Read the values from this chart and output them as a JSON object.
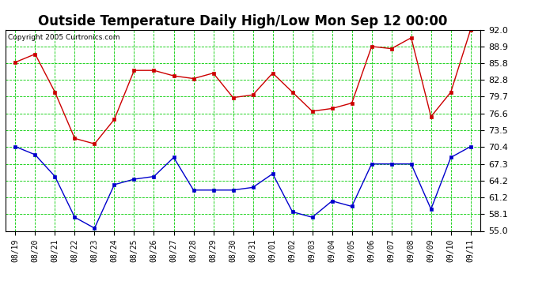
{
  "title": "Outside Temperature Daily High/Low Mon Sep 12 00:00",
  "copyright": "Copyright 2005 Curtronics.com",
  "x_labels": [
    "08/19",
    "08/20",
    "08/21",
    "08/22",
    "08/23",
    "08/24",
    "08/25",
    "08/26",
    "08/27",
    "08/28",
    "08/29",
    "08/30",
    "08/31",
    "09/01",
    "09/02",
    "09/03",
    "09/04",
    "09/05",
    "09/06",
    "09/07",
    "09/08",
    "09/09",
    "09/10",
    "09/11"
  ],
  "high_values": [
    86.0,
    87.5,
    80.5,
    72.0,
    71.0,
    75.5,
    84.5,
    84.5,
    83.5,
    83.0,
    84.0,
    79.5,
    80.0,
    84.0,
    80.5,
    77.0,
    77.5,
    78.5,
    88.9,
    88.5,
    90.5,
    76.0,
    80.5,
    92.0
  ],
  "low_values": [
    70.5,
    69.0,
    65.0,
    57.5,
    55.5,
    63.5,
    64.5,
    65.0,
    68.5,
    62.5,
    62.5,
    62.5,
    63.0,
    65.5,
    58.5,
    57.5,
    60.5,
    59.5,
    67.3,
    67.3,
    67.3,
    59.0,
    68.5,
    70.5
  ],
  "ylim": [
    55.0,
    92.0
  ],
  "yticks": [
    55.0,
    58.1,
    61.2,
    64.2,
    67.3,
    70.4,
    73.5,
    76.6,
    79.7,
    82.8,
    85.8,
    88.9,
    92.0
  ],
  "high_color": "#cc0000",
  "low_color": "#0000cc",
  "bg_color": "#ffffff",
  "grid_color": "#00cc00",
  "title_fontsize": 12,
  "tick_fontsize": 8,
  "xlabel_fontsize": 7,
  "marker": "s",
  "marker_size": 3,
  "linewidth": 1.0
}
